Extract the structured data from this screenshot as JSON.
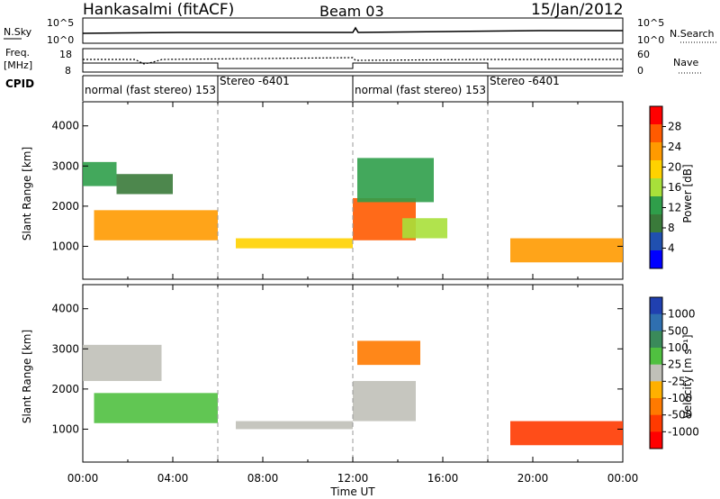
{
  "header": {
    "station": "Hankasalmi (fitACF)",
    "beam": "Beam 03",
    "date": "15/Jan/2012"
  },
  "top_panels": {
    "nsky_label": "N.Sky",
    "nsky_ticks": [
      "10^5",
      "10^0"
    ],
    "nsearch_label": "N.Search",
    "nsearch_ticks": [
      "10^5",
      "10^0"
    ],
    "freq_label_1": "Freq.",
    "freq_label_2": "[MHz]",
    "freq_ticks": [
      "18",
      "8"
    ],
    "nave_label": "Nave",
    "nave_ticks": [
      "60",
      "0"
    ],
    "cpid_label": "CPID",
    "cpid_segments": [
      {
        "label": "normal (fast stereo) 153",
        "start": 0,
        "end": 6
      },
      {
        "label": "Stereo -6401",
        "start": 6,
        "end": 12
      },
      {
        "label": "normal (fast stereo) 153",
        "start": 12,
        "end": 18
      },
      {
        "label": "Stereo -6401",
        "start": 18,
        "end": 24
      }
    ]
  },
  "colorbars": {
    "power": {
      "label": "Power [dB]",
      "ticks": [
        "28",
        "24",
        "20",
        "16",
        "12",
        "8",
        "4"
      ],
      "colors": [
        "#ff0000",
        "#ff5a00",
        "#ff9a00",
        "#ffd200",
        "#a8e03a",
        "#2f9e4a",
        "#3a7a3a",
        "#2050b0",
        "#0000ff"
      ]
    },
    "velocity": {
      "label": "Velocity [m s⁻¹]",
      "ticks": [
        "1000",
        "500",
        "100",
        "25",
        "-25",
        "-100",
        "-500",
        "-1000"
      ],
      "colors": [
        "#2040b0",
        "#2f6fb0",
        "#3a8a5a",
        "#50c040",
        "#c0c0b8",
        "#ffb000",
        "#ff7a00",
        "#ff3a00",
        "#ff0000"
      ]
    }
  },
  "x_ticks": [
    "00:00",
    "04:00",
    "08:00",
    "12:00",
    "16:00",
    "20:00",
    "00:00"
  ],
  "x_label": "Time UT",
  "y_label": "Slant Range [km]",
  "y_ticks": [
    "4000",
    "3000",
    "2000",
    "1000"
  ],
  "chart_data": [
    {
      "type": "heatmap",
      "name": "Power",
      "xlabel": "Time UT",
      "ylabel": "Slant Range [km]",
      "xlim": [
        0,
        24
      ],
      "ylim": [
        180,
        4600
      ],
      "zlabel": "Power [dB]",
      "zlim": [
        0,
        30
      ],
      "regions": [
        {
          "t": [
            0,
            1.5
          ],
          "r": [
            2500,
            3100
          ],
          "power": 10
        },
        {
          "t": [
            1.5,
            4.0
          ],
          "r": [
            2300,
            2800
          ],
          "power": 8
        },
        {
          "t": [
            0.5,
            6.0
          ],
          "r": [
            1150,
            1900
          ],
          "power": 22
        },
        {
          "t": [
            6.8,
            12.0
          ],
          "r": [
            950,
            1200
          ],
          "power": 18
        },
        {
          "t": [
            12.0,
            14.8
          ],
          "r": [
            1150,
            2200
          ],
          "power": 26
        },
        {
          "t": [
            12.2,
            15.6
          ],
          "r": [
            2100,
            3200
          ],
          "power": 12
        },
        {
          "t": [
            14.2,
            16.2
          ],
          "r": [
            1200,
            1700
          ],
          "power": 14
        },
        {
          "t": [
            19.0,
            24.0
          ],
          "r": [
            600,
            1200
          ],
          "power": 22
        }
      ]
    },
    {
      "type": "heatmap",
      "name": "Velocity",
      "xlabel": "Time UT",
      "ylabel": "Slant Range [km]",
      "xlim": [
        0,
        24
      ],
      "ylim": [
        180,
        4600
      ],
      "zlabel": "Velocity [m s-1]",
      "zlim": [
        -1000,
        1000
      ],
      "regions": [
        {
          "t": [
            0,
            3.5
          ],
          "r": [
            2200,
            3100
          ],
          "velocity": 0
        },
        {
          "t": [
            0.5,
            6.0
          ],
          "r": [
            1150,
            1900
          ],
          "velocity": 100
        },
        {
          "t": [
            6.8,
            12.0
          ],
          "r": [
            1000,
            1200
          ],
          "velocity": 0
        },
        {
          "t": [
            12.0,
            14.8
          ],
          "r": [
            1200,
            2200
          ],
          "velocity": 0
        },
        {
          "t": [
            12.2,
            15.0
          ],
          "r": [
            2600,
            3200
          ],
          "velocity": -100
        },
        {
          "t": [
            19.0,
            24.0
          ],
          "r": [
            600,
            1200
          ],
          "velocity": -500
        }
      ]
    }
  ]
}
